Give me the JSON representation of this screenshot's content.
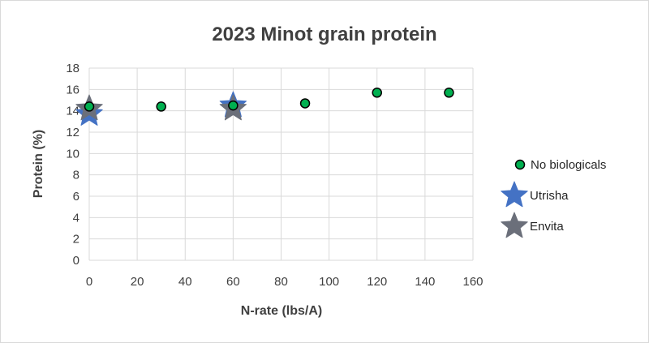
{
  "chart_data": {
    "type": "scatter",
    "title": "2023 Minot grain protein",
    "xlabel": "N-rate (lbs/A)",
    "ylabel": "Protein (%)",
    "xlim": [
      0,
      160
    ],
    "ylim": [
      0,
      18
    ],
    "x_ticks": [
      "0",
      "20",
      "40",
      "60",
      "80",
      "100",
      "120",
      "140",
      "160"
    ],
    "y_ticks": [
      "0",
      "2",
      "4",
      "6",
      "8",
      "10",
      "12",
      "14",
      "16",
      "18"
    ],
    "grid": true,
    "legend_position": "right",
    "series": [
      {
        "name": "No biologicals",
        "marker": "circle",
        "color": "#00b050",
        "points": [
          {
            "x": 0,
            "y": 14.4
          },
          {
            "x": 30,
            "y": 14.4
          },
          {
            "x": 60,
            "y": 14.5
          },
          {
            "x": 90,
            "y": 14.7
          },
          {
            "x": 120,
            "y": 15.7
          },
          {
            "x": 150,
            "y": 15.7
          }
        ]
      },
      {
        "name": "Utrisha",
        "marker": "star",
        "color": "#4472c4",
        "points": [
          {
            "x": 0,
            "y": 13.7
          },
          {
            "x": 60,
            "y": 14.5
          }
        ]
      },
      {
        "name": "Envita",
        "marker": "star",
        "color": "#6b6f7a",
        "points": [
          {
            "x": 0,
            "y": 14.2
          },
          {
            "x": 60,
            "y": 14.2
          }
        ]
      }
    ]
  }
}
